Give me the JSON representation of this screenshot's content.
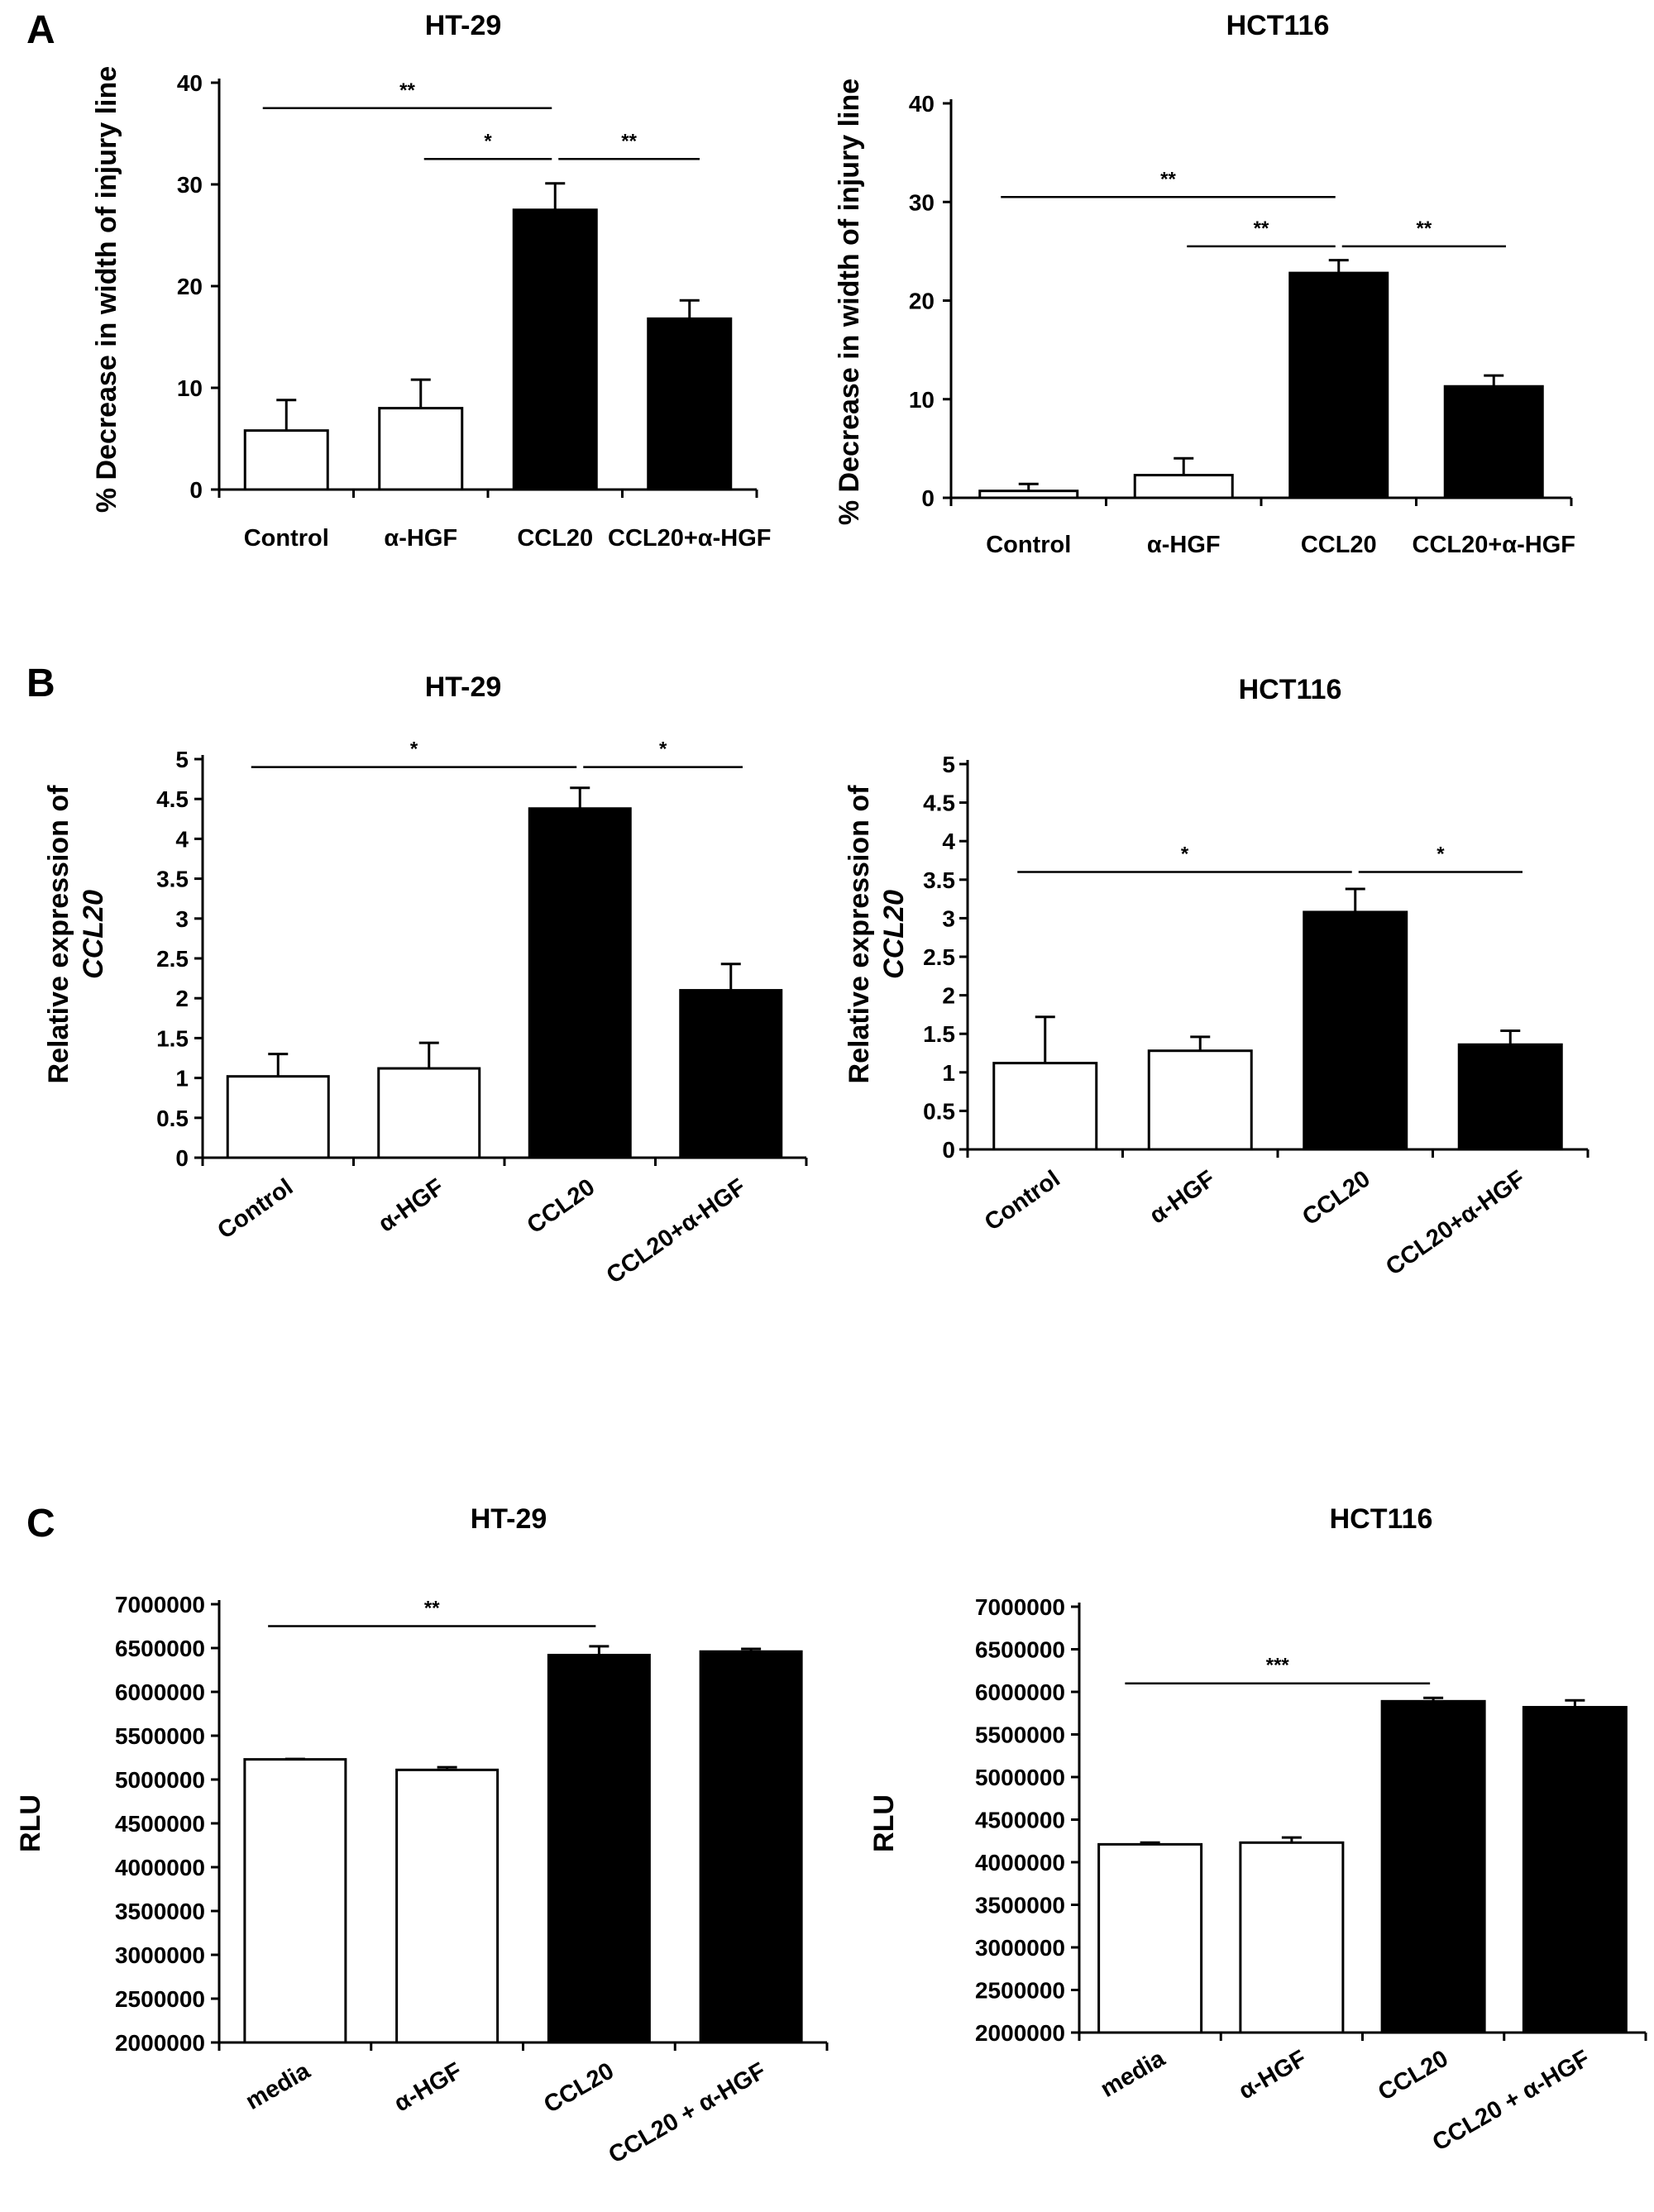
{
  "panels": [
    {
      "letter": "A",
      "chart_indices": [
        0,
        1
      ]
    },
    {
      "letter": "B",
      "chart_indices": [
        2,
        3
      ]
    },
    {
      "letter": "C",
      "chart_indices": [
        4,
        5
      ]
    }
  ],
  "chart_data": [
    {
      "type": "bar",
      "title": "HT-29",
      "ylabel": "% Decrease in width of injury line",
      "categories": [
        "Control",
        "α-HGF",
        "CCL20",
        "CCL20+α-HGF"
      ],
      "values": [
        5.8,
        8.0,
        27.5,
        16.8
      ],
      "errors": [
        3.0,
        2.8,
        2.6,
        1.8
      ],
      "fill": [
        "#ffffff",
        "#ffffff",
        "#000000",
        "#000000"
      ],
      "ylim": [
        0,
        40
      ],
      "yticks": [
        "0",
        "10",
        "20",
        "30",
        "40"
      ],
      "grid": false,
      "significance": [
        {
          "from": 0,
          "to": 2,
          "label": "**",
          "y": 37.5
        },
        {
          "from": 1,
          "to": 2,
          "label": "*",
          "y": 32.5
        },
        {
          "from": 2,
          "to": 3,
          "label": "**",
          "y": 32.5
        }
      ]
    },
    {
      "type": "bar",
      "title": "HCT116",
      "ylabel": "% Decrease in width of injury line",
      "categories": [
        "Control",
        "α-HGF",
        "CCL20",
        "CCL20+α-HGF"
      ],
      "values": [
        0.7,
        2.3,
        22.8,
        11.3
      ],
      "errors": [
        0.7,
        1.7,
        1.3,
        1.1
      ],
      "fill": [
        "#ffffff",
        "#ffffff",
        "#000000",
        "#000000"
      ],
      "ylim": [
        0,
        40
      ],
      "yticks": [
        "0",
        "10",
        "20",
        "30",
        "40"
      ],
      "grid": false,
      "significance": [
        {
          "from": 0,
          "to": 2,
          "label": "**",
          "y": 30.5
        },
        {
          "from": 1,
          "to": 2,
          "label": "**",
          "y": 25.5
        },
        {
          "from": 2,
          "to": 3,
          "label": "**",
          "y": 25.5
        }
      ]
    },
    {
      "type": "bar",
      "title": "HT-29",
      "ylabel": "Relative expression of",
      "ylabel_gene": "CCL20",
      "categories": [
        "Control",
        "α-HGF",
        "CCL20",
        "CCL20+α-HGF"
      ],
      "values": [
        1.02,
        1.12,
        4.38,
        2.1
      ],
      "errors": [
        0.28,
        0.32,
        0.26,
        0.33
      ],
      "fill": [
        "#ffffff",
        "#ffffff",
        "#000000",
        "#000000"
      ],
      "ylim": [
        0,
        5
      ],
      "yticks": [
        "0",
        "0.5",
        "1",
        "1.5",
        "2",
        "2.5",
        "3",
        "3.5",
        "4",
        "4.5",
        "5"
      ],
      "grid": false,
      "significance": [
        {
          "from": 0,
          "to": 2,
          "label": "*",
          "y": 4.9
        },
        {
          "from": 2,
          "to": 3,
          "label": "*",
          "y": 4.9
        }
      ]
    },
    {
      "type": "bar",
      "title": "HCT116",
      "ylabel": "Relative expression of",
      "ylabel_gene": "CCL20",
      "categories": [
        "Control",
        "α-HGF",
        "CCL20",
        "CCL20+α-HGF"
      ],
      "values": [
        1.12,
        1.28,
        3.08,
        1.36
      ],
      "errors": [
        0.6,
        0.18,
        0.3,
        0.18
      ],
      "fill": [
        "#ffffff",
        "#ffffff",
        "#000000",
        "#000000"
      ],
      "ylim": [
        0,
        5
      ],
      "yticks": [
        "0",
        "0.5",
        "1",
        "1.5",
        "2",
        "2.5",
        "3",
        "3.5",
        "4",
        "4.5",
        "5"
      ],
      "grid": false,
      "significance": [
        {
          "from": 0,
          "to": 2,
          "label": "*",
          "y": 3.6
        },
        {
          "from": 2,
          "to": 3,
          "label": "*",
          "y": 3.6
        }
      ]
    },
    {
      "type": "bar",
      "title": "HT-29",
      "ylabel": "RLU",
      "categories": [
        "media",
        "α-HGF",
        "CCL20",
        "CCL20 + α-HGF"
      ],
      "values": [
        5230000,
        5110000,
        6420000,
        6460000
      ],
      "errors": [
        5000,
        30000,
        100000,
        30000
      ],
      "fill": [
        "#ffffff",
        "#ffffff",
        "#000000",
        "#000000"
      ],
      "ylim": [
        2000000,
        7000000
      ],
      "yticks": [
        "2000000",
        "2500000",
        "3000000",
        "3500000",
        "4000000",
        "4500000",
        "5000000",
        "5500000",
        "6000000",
        "6500000",
        "7000000"
      ],
      "grid": false,
      "significance": [
        {
          "from": 0,
          "to": 2,
          "label": "**",
          "y": 6750000
        }
      ]
    },
    {
      "type": "bar",
      "title": "HCT116",
      "ylabel": "RLU",
      "categories": [
        "media",
        "α-HGF",
        "CCL20",
        "CCL20 + α-HGF"
      ],
      "values": [
        4210000,
        4230000,
        5890000,
        5820000
      ],
      "errors": [
        20000,
        60000,
        40000,
        80000
      ],
      "fill": [
        "#ffffff",
        "#ffffff",
        "#000000",
        "#000000"
      ],
      "ylim": [
        2000000,
        7000000
      ],
      "yticks": [
        "2000000",
        "2500000",
        "3000000",
        "3500000",
        "4000000",
        "4500000",
        "5000000",
        "5500000",
        "6000000",
        "6500000",
        "7000000"
      ],
      "grid": false,
      "significance": [
        {
          "from": 0,
          "to": 2,
          "label": "***",
          "y": 6100000
        }
      ]
    }
  ]
}
